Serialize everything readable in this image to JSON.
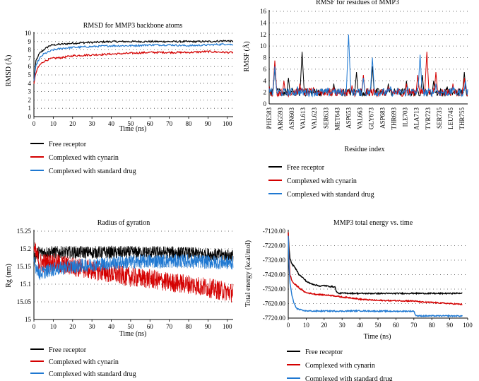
{
  "colors": {
    "free": "#000000",
    "cynarin": "#d40000",
    "drug": "#1f78d1"
  },
  "chart_data": [
    {
      "type": "line",
      "title": "RMSD for MMP3 backbone atoms",
      "xlabel": "Time (ns)",
      "ylabel": "RMSD (Å)",
      "xlim": [
        0,
        103
      ],
      "ylim": [
        0,
        10
      ],
      "x_ticks": [
        "0",
        "10",
        "20",
        "30",
        "40",
        "50",
        "60",
        "70",
        "80",
        "90",
        "100"
      ],
      "y_ticks": [
        "0",
        "1",
        "2",
        "3",
        "4",
        "5",
        "6",
        "7",
        "8",
        "9",
        "10"
      ],
      "grid": "dotted horizontal",
      "legend_position": "below",
      "x": [
        0,
        1,
        2,
        3,
        5,
        8,
        10,
        15,
        20,
        30,
        40,
        50,
        60,
        70,
        80,
        90,
        100,
        103
      ],
      "series": [
        {
          "name": "Free receptor",
          "color": "#000000",
          "values": [
            4.2,
            6.6,
            7.2,
            7.6,
            8.0,
            8.5,
            8.6,
            8.7,
            8.8,
            8.9,
            9.0,
            9.0,
            9.0,
            9.0,
            9.0,
            9.0,
            9.1,
            9.0
          ]
        },
        {
          "name": "Complexed with cynarin",
          "color": "#d40000",
          "values": [
            4.0,
            5.2,
            5.8,
            6.2,
            6.6,
            6.9,
            7.0,
            7.1,
            7.3,
            7.4,
            7.5,
            7.6,
            7.7,
            7.7,
            7.7,
            7.8,
            7.7,
            7.7
          ]
        },
        {
          "name": "Complexed with standard drug",
          "color": "#1f78d1",
          "values": [
            4.3,
            6.0,
            6.6,
            7.0,
            7.5,
            7.8,
            8.0,
            8.2,
            8.3,
            8.4,
            8.5,
            8.5,
            8.6,
            8.6,
            8.5,
            8.6,
            8.7,
            8.6
          ]
        }
      ]
    },
    {
      "type": "line",
      "title": "RMSF for residues of MMP3",
      "xlabel": "Residue index",
      "ylabel": "RMSF (Å)",
      "ylim": [
        0,
        16
      ],
      "y_ticks": [
        "0",
        "2",
        "4",
        "6",
        "8",
        "10",
        "12",
        "14",
        "16"
      ],
      "categories": [
        "PHE583",
        "ARG593",
        "ASN603",
        "VAL613",
        "VAL623",
        "SER633",
        "MET643",
        "ASP653",
        "VAL663",
        "GLY673",
        "ASP683",
        "THR693",
        "ILE703",
        "ALA713",
        "TYR723",
        "SER735",
        "LEU745",
        "THR755"
      ],
      "grid": "dotted horizontal",
      "legend_position": "below",
      "residue_range": [
        583,
        758
      ],
      "series": [
        {
          "name": "Free receptor",
          "color": "#000000",
          "peaks": [
            [
              583,
              3.2
            ],
            [
              588,
              6.2
            ],
            [
              600,
              4.5
            ],
            [
              612,
              9.0
            ],
            [
              625,
              2.6
            ],
            [
              640,
              3.5
            ],
            [
              660,
              5.5
            ],
            [
              674,
              6.5
            ],
            [
              688,
              3.5
            ],
            [
              704,
              4.0
            ],
            [
              718,
              5.0
            ],
            [
              728,
              4.0
            ],
            [
              740,
              3.0
            ],
            [
              755,
              5.5
            ]
          ]
        },
        {
          "name": "Complexed with cynarin",
          "color": "#d40000",
          "peaks": [
            [
              583,
              3.0
            ],
            [
              588,
              7.5
            ],
            [
              596,
              4.0
            ],
            [
              610,
              3.5
            ],
            [
              622,
              2.8
            ],
            [
              640,
              2.8
            ],
            [
              656,
              3.2
            ],
            [
              666,
              5.0
            ],
            [
              688,
              3.0
            ],
            [
              704,
              3.5
            ],
            [
              714,
              5.0
            ],
            [
              722,
              9.0
            ],
            [
              730,
              5.5
            ],
            [
              745,
              3.5
            ],
            [
              755,
              4.5
            ]
          ]
        },
        {
          "name": "Complexed with standard drug",
          "color": "#1f78d1",
          "peaks": [
            [
              583,
              2.5
            ],
            [
              588,
              6.5
            ],
            [
              608,
              3.0
            ],
            [
              628,
              2.5
            ],
            [
              640,
              2.5
            ],
            [
              653,
              12.0
            ],
            [
              666,
              4.5
            ],
            [
              674,
              8.0
            ],
            [
              690,
              3.0
            ],
            [
              705,
              3.0
            ],
            [
              716,
              8.5
            ],
            [
              730,
              3.5
            ],
            [
              745,
              3.0
            ],
            [
              756,
              4.0
            ]
          ]
        }
      ]
    },
    {
      "type": "line",
      "title": "Radius of gyration",
      "xlabel": "Time (ns)",
      "ylabel": "Rg (nm)",
      "xlim": [
        0,
        103
      ],
      "ylim": [
        15,
        15.25
      ],
      "x_ticks": [
        "0",
        "10",
        "20",
        "30",
        "40",
        "50",
        "60",
        "70",
        "80",
        "90",
        "100"
      ],
      "y_ticks": [
        "15",
        "15.05",
        "15.1",
        "15.15",
        "15.2",
        "15.25"
      ],
      "grid": "dotted horizontal",
      "legend_position": "below",
      "series": [
        {
          "name": "Free receptor",
          "color": "#000000",
          "trend": [
            [
              0,
              15.17
            ],
            [
              2,
              15.19
            ],
            [
              10,
              15.19
            ],
            [
              30,
              15.19
            ],
            [
              50,
              15.19
            ],
            [
              70,
              15.19
            ],
            [
              90,
              15.185
            ],
            [
              103,
              15.18
            ]
          ],
          "noise": 0.018
        },
        {
          "name": "Complexed with cynarin",
          "color": "#d40000",
          "trend": [
            [
              0,
              15.2
            ],
            [
              3,
              15.16
            ],
            [
              10,
              15.16
            ],
            [
              20,
              15.15
            ],
            [
              30,
              15.14
            ],
            [
              40,
              15.13
            ],
            [
              50,
              15.12
            ],
            [
              60,
              15.115
            ],
            [
              70,
              15.105
            ],
            [
              80,
              15.1
            ],
            [
              90,
              15.09
            ],
            [
              103,
              15.075
            ]
          ],
          "noise": 0.028
        },
        {
          "name": "Complexed with standard drug",
          "color": "#1f78d1",
          "trend": [
            [
              0,
              15.16
            ],
            [
              3,
              15.13
            ],
            [
              8,
              15.14
            ],
            [
              20,
              15.15
            ],
            [
              40,
              15.16
            ],
            [
              60,
              15.165
            ],
            [
              80,
              15.165
            ],
            [
              103,
              15.16
            ]
          ],
          "noise": 0.02
        }
      ]
    },
    {
      "type": "line",
      "title": "MMP3 total energy vs. time",
      "xlabel": "Time (ns)",
      "ylabel": "Total energy (kcal/mol)",
      "xlim": [
        0,
        100
      ],
      "ylim": [
        -7720,
        -7120
      ],
      "x_ticks": [
        "0",
        "10",
        "20",
        "30",
        "40",
        "50",
        "60",
        "70",
        "80",
        "90",
        "100"
      ],
      "y_ticks": [
        "-7120.00",
        "-7220.00",
        "-7320.00",
        "-7420.00",
        "-7520.00",
        "-7620.00",
        "-7720.00"
      ],
      "grid": "dotted horizontal",
      "legend_position": "below",
      "series": [
        {
          "name": "Free receptor",
          "color": "#000000",
          "x": [
            0,
            0.5,
            1,
            2,
            3,
            5,
            6,
            8,
            10,
            12,
            15,
            18,
            20,
            22,
            26,
            27,
            28,
            30,
            40,
            50,
            60,
            70,
            80,
            90,
            97
          ],
          "values": [
            -7130,
            -7250,
            -7310,
            -7345,
            -7360,
            -7395,
            -7420,
            -7440,
            -7465,
            -7480,
            -7490,
            -7500,
            -7495,
            -7500,
            -7505,
            -7540,
            -7550,
            -7548,
            -7550,
            -7550,
            -7550,
            -7549,
            -7550,
            -7550,
            -7548
          ]
        },
        {
          "name": "Complexed with cynarin",
          "color": "#d40000",
          "x": [
            0,
            0.5,
            1,
            2,
            3,
            5,
            8,
            10,
            15,
            20,
            25,
            30,
            35,
            40,
            50,
            60,
            70,
            75,
            80,
            90,
            97
          ],
          "values": [
            -7130,
            -7330,
            -7420,
            -7460,
            -7480,
            -7500,
            -7530,
            -7545,
            -7555,
            -7560,
            -7565,
            -7575,
            -7580,
            -7590,
            -7598,
            -7600,
            -7602,
            -7610,
            -7612,
            -7620,
            -7625
          ]
        },
        {
          "name": "Complexed with standard drug",
          "color": "#1f78d1",
          "x": [
            0,
            0.5,
            1,
            2,
            3,
            4,
            5,
            6,
            8,
            10,
            15,
            20,
            30,
            40,
            50,
            60,
            70,
            71,
            72,
            80,
            90,
            97
          ],
          "values": [
            -7150,
            -7380,
            -7480,
            -7560,
            -7610,
            -7640,
            -7655,
            -7660,
            -7668,
            -7670,
            -7672,
            -7671,
            -7672,
            -7670,
            -7672,
            -7673,
            -7672,
            -7700,
            -7705,
            -7705,
            -7705,
            -7705
          ]
        }
      ]
    }
  ]
}
